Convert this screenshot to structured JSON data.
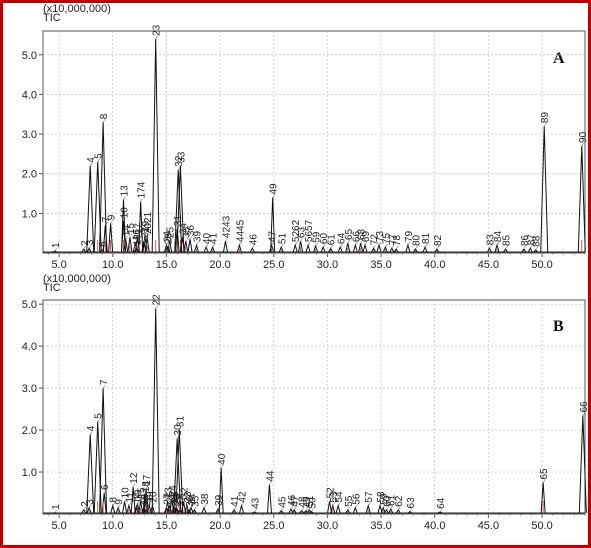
{
  "chart_data": [
    {
      "type": "line",
      "panel": "A",
      "scale_label": "(x10,000,000)",
      "trace_label": "TIC",
      "xlim": [
        3.5,
        54
      ],
      "ylim": [
        0,
        5.6
      ],
      "x_ticks": [
        "5.0",
        "10.0",
        "15.0",
        "20.0",
        "25.0",
        "30.0",
        "35.0",
        "40.0",
        "45.0",
        "50.0"
      ],
      "y_ticks": [
        "1.0",
        "2.0",
        "3.0",
        "4.0",
        "5.0"
      ],
      "grid": true,
      "peaks": [
        {
          "label": "1",
          "x": 4.6,
          "y": 0.05
        },
        {
          "label": "2",
          "x": 7.3,
          "y": 0.1
        },
        {
          "label": "3",
          "x": 7.8,
          "y": 0.12
        },
        {
          "label": "4",
          "x": 7.9,
          "y": 2.2
        },
        {
          "label": "5",
          "x": 8.6,
          "y": 2.3
        },
        {
          "label": "6",
          "x": 9.0,
          "y": 0.08
        },
        {
          "label": "7",
          "x": 9.3,
          "y": 0.7
        },
        {
          "label": "8",
          "x": 9.1,
          "y": 3.3
        },
        {
          "label": "9",
          "x": 9.8,
          "y": 0.75
        },
        {
          "label": "10",
          "x": 11.0,
          "y": 0.8
        },
        {
          "label": "13",
          "x": 11.0,
          "y": 1.35
        },
        {
          "label": "14",
          "x": 11.2,
          "y": 0.35
        },
        {
          "label": "15",
          "x": 11.6,
          "y": 0.4
        },
        {
          "label": "16",
          "x": 12.1,
          "y": 0.25
        },
        {
          "label": "17",
          "x": 12.3,
          "y": 0.4
        },
        {
          "label": "174",
          "x": 12.6,
          "y": 1.3
        },
        {
          "label": "18",
          "x": 12.2,
          "y": 0.12
        },
        {
          "label": "19",
          "x": 13.0,
          "y": 0.45
        },
        {
          "label": "2021",
          "x": 13.2,
          "y": 0.4
        },
        {
          "label": "22",
          "x": 12.9,
          "y": 0.3
        },
        {
          "label": "23",
          "x": 14.0,
          "y": 5.4
        },
        {
          "label": "24",
          "x": 15.0,
          "y": 0.2
        },
        {
          "label": "25",
          "x": 15.3,
          "y": 0.3
        },
        {
          "label": "26",
          "x": 15.1,
          "y": 0.15
        },
        {
          "label": "31",
          "x": 16.0,
          "y": 0.6
        },
        {
          "label": "32",
          "x": 16.1,
          "y": 2.1
        },
        {
          "label": "33",
          "x": 16.3,
          "y": 2.2
        },
        {
          "label": "34",
          "x": 16.5,
          "y": 0.4
        },
        {
          "label": "35",
          "x": 16.8,
          "y": 0.3
        },
        {
          "label": "36",
          "x": 17.2,
          "y": 0.35
        },
        {
          "label": "39",
          "x": 17.8,
          "y": 0.2
        },
        {
          "label": "40",
          "x": 18.7,
          "y": 0.15
        },
        {
          "label": "41",
          "x": 19.3,
          "y": 0.15
        },
        {
          "label": "4243",
          "x": 20.5,
          "y": 0.3
        },
        {
          "label": "4445",
          "x": 21.8,
          "y": 0.2
        },
        {
          "label": "46",
          "x": 23.0,
          "y": 0.12
        },
        {
          "label": "47",
          "x": 24.8,
          "y": 0.2
        },
        {
          "label": "49",
          "x": 24.9,
          "y": 1.4
        },
        {
          "label": "51",
          "x": 25.7,
          "y": 0.15
        },
        {
          "label": "5262",
          "x": 27.0,
          "y": 0.2
        },
        {
          "label": "63",
          "x": 27.5,
          "y": 0.3
        },
        {
          "label": "5657",
          "x": 28.2,
          "y": 0.2
        },
        {
          "label": "59",
          "x": 28.9,
          "y": 0.18
        },
        {
          "label": "60",
          "x": 29.6,
          "y": 0.15
        },
        {
          "label": "61",
          "x": 30.3,
          "y": 0.12
        },
        {
          "label": "64",
          "x": 31.2,
          "y": 0.15
        },
        {
          "label": "65",
          "x": 31.9,
          "y": 0.25
        },
        {
          "label": "66",
          "x": 32.6,
          "y": 0.2
        },
        {
          "label": "68",
          "x": 33.1,
          "y": 0.25
        },
        {
          "label": "69",
          "x": 33.5,
          "y": 0.2
        },
        {
          "label": "72",
          "x": 34.3,
          "y": 0.12
        },
        {
          "label": "73",
          "x": 34.8,
          "y": 0.2
        },
        {
          "label": "75",
          "x": 35.4,
          "y": 0.15
        },
        {
          "label": "77",
          "x": 36.0,
          "y": 0.12
        },
        {
          "label": "78",
          "x": 36.4,
          "y": 0.1
        },
        {
          "label": "79",
          "x": 37.5,
          "y": 0.2
        },
        {
          "label": "80",
          "x": 38.2,
          "y": 0.1
        },
        {
          "label": "81",
          "x": 39.1,
          "y": 0.15
        },
        {
          "label": "82",
          "x": 40.2,
          "y": 0.1
        },
        {
          "label": "83",
          "x": 45.1,
          "y": 0.12
        },
        {
          "label": "84",
          "x": 45.8,
          "y": 0.2
        },
        {
          "label": "85",
          "x": 46.6,
          "y": 0.1
        },
        {
          "label": "86",
          "x": 48.3,
          "y": 0.1
        },
        {
          "label": "87",
          "x": 48.9,
          "y": 0.12
        },
        {
          "label": "88",
          "x": 49.4,
          "y": 0.08
        },
        {
          "label": "89",
          "x": 50.2,
          "y": 3.2
        },
        {
          "label": "90",
          "x": 53.7,
          "y": 2.7
        }
      ]
    },
    {
      "type": "line",
      "panel": "B",
      "scale_label": "(x10,000,000)",
      "trace_label": "TIC",
      "xlim": [
        3.5,
        54
      ],
      "ylim": [
        0,
        5.1
      ],
      "x_ticks": [
        "5.0",
        "10.0",
        "15.0",
        "20.0",
        "25.0",
        "30.0",
        "35.0",
        "40.0",
        "45.0",
        "50.0"
      ],
      "y_ticks": [
        "1.0",
        "2.0",
        "3.0",
        "4.0",
        "5.0"
      ],
      "grid": true,
      "peaks": [
        {
          "label": "1",
          "x": 4.6,
          "y": 0.03
        },
        {
          "label": "2",
          "x": 7.3,
          "y": 0.1
        },
        {
          "label": "3",
          "x": 7.8,
          "y": 0.15
        },
        {
          "label": "4",
          "x": 7.9,
          "y": 1.9
        },
        {
          "label": "5",
          "x": 8.6,
          "y": 2.2
        },
        {
          "label": "6",
          "x": 9.2,
          "y": 0.5
        },
        {
          "label": "7",
          "x": 9.1,
          "y": 3.0
        },
        {
          "label": "8",
          "x": 10.0,
          "y": 0.2
        },
        {
          "label": "9",
          "x": 10.5,
          "y": 0.15
        },
        {
          "label": "10",
          "x": 11.1,
          "y": 0.3
        },
        {
          "label": "11",
          "x": 11.5,
          "y": 0.2
        },
        {
          "label": "12",
          "x": 11.9,
          "y": 0.65
        },
        {
          "label": "13",
          "x": 12.3,
          "y": 0.25
        },
        {
          "label": "14",
          "x": 12.2,
          "y": 0.18
        },
        {
          "label": "15",
          "x": 12.6,
          "y": 0.3
        },
        {
          "label": "16",
          "x": 12.9,
          "y": 0.15
        },
        {
          "label": "17",
          "x": 13.1,
          "y": 0.6
        },
        {
          "label": "18",
          "x": 13.0,
          "y": 0.45
        },
        {
          "label": "19",
          "x": 13.4,
          "y": 0.2
        },
        {
          "label": "20",
          "x": 13.7,
          "y": 0.2
        },
        {
          "label": "21",
          "x": 13.1,
          "y": 0.1
        },
        {
          "label": "22",
          "x": 14.0,
          "y": 4.9
        },
        {
          "label": "23",
          "x": 15.1,
          "y": 0.3
        },
        {
          "label": "24",
          "x": 15.5,
          "y": 0.35
        },
        {
          "label": "25",
          "x": 15.3,
          "y": 0.2
        },
        {
          "label": "26",
          "x": 15.7,
          "y": 0.2
        },
        {
          "label": "27",
          "x": 15.0,
          "y": 0.15
        },
        {
          "label": "28",
          "x": 15.9,
          "y": 0.15
        },
        {
          "label": "29",
          "x": 16.0,
          "y": 0.12
        },
        {
          "label": "30",
          "x": 16.0,
          "y": 1.8
        },
        {
          "label": "31",
          "x": 16.2,
          "y": 2.0
        },
        {
          "label": "32",
          "x": 16.6,
          "y": 0.3
        },
        {
          "label": "33",
          "x": 16.9,
          "y": 0.2
        },
        {
          "label": "34",
          "x": 17.3,
          "y": 0.15
        },
        {
          "label": "35",
          "x": 17.6,
          "y": 0.1
        },
        {
          "label": "36",
          "x": 17.1,
          "y": 0.1
        },
        {
          "label": "37",
          "x": 16.3,
          "y": 0.1
        },
        {
          "label": "38",
          "x": 18.5,
          "y": 0.15
        },
        {
          "label": "39",
          "x": 19.8,
          "y": 0.12
        },
        {
          "label": "40",
          "x": 20.1,
          "y": 1.1
        },
        {
          "label": "41",
          "x": 21.3,
          "y": 0.1
        },
        {
          "label": "42",
          "x": 22.0,
          "y": 0.2
        },
        {
          "label": "43",
          "x": 23.2,
          "y": 0.05
        },
        {
          "label": "44",
          "x": 24.6,
          "y": 0.7
        },
        {
          "label": "45",
          "x": 25.7,
          "y": 0.08
        },
        {
          "label": "46",
          "x": 26.6,
          "y": 0.12
        },
        {
          "label": "47",
          "x": 26.9,
          "y": 0.1
        },
        {
          "label": "48",
          "x": 27.6,
          "y": 0.08
        },
        {
          "label": "49",
          "x": 28.0,
          "y": 0.08
        },
        {
          "label": "50",
          "x": 28.5,
          "y": 0.06
        },
        {
          "label": "51",
          "x": 28.3,
          "y": 0.1
        },
        {
          "label": "52",
          "x": 30.2,
          "y": 0.3
        },
        {
          "label": "53",
          "x": 30.5,
          "y": 0.2
        },
        {
          "label": "54",
          "x": 31.0,
          "y": 0.2
        },
        {
          "label": "55",
          "x": 31.9,
          "y": 0.1
        },
        {
          "label": "56",
          "x": 32.6,
          "y": 0.15
        },
        {
          "label": "57",
          "x": 33.8,
          "y": 0.2
        },
        {
          "label": "58",
          "x": 34.9,
          "y": 0.2
        },
        {
          "label": "59",
          "x": 35.2,
          "y": 0.15
        },
        {
          "label": "60",
          "x": 35.5,
          "y": 0.1
        },
        {
          "label": "61",
          "x": 35.9,
          "y": 0.12
        },
        {
          "label": "62",
          "x": 36.6,
          "y": 0.1
        },
        {
          "label": "63",
          "x": 37.7,
          "y": 0.06
        },
        {
          "label": "64",
          "x": 40.5,
          "y": 0.05
        },
        {
          "label": "65",
          "x": 50.1,
          "y": 0.75
        },
        {
          "label": "66",
          "x": 53.8,
          "y": 2.35
        }
      ]
    }
  ]
}
